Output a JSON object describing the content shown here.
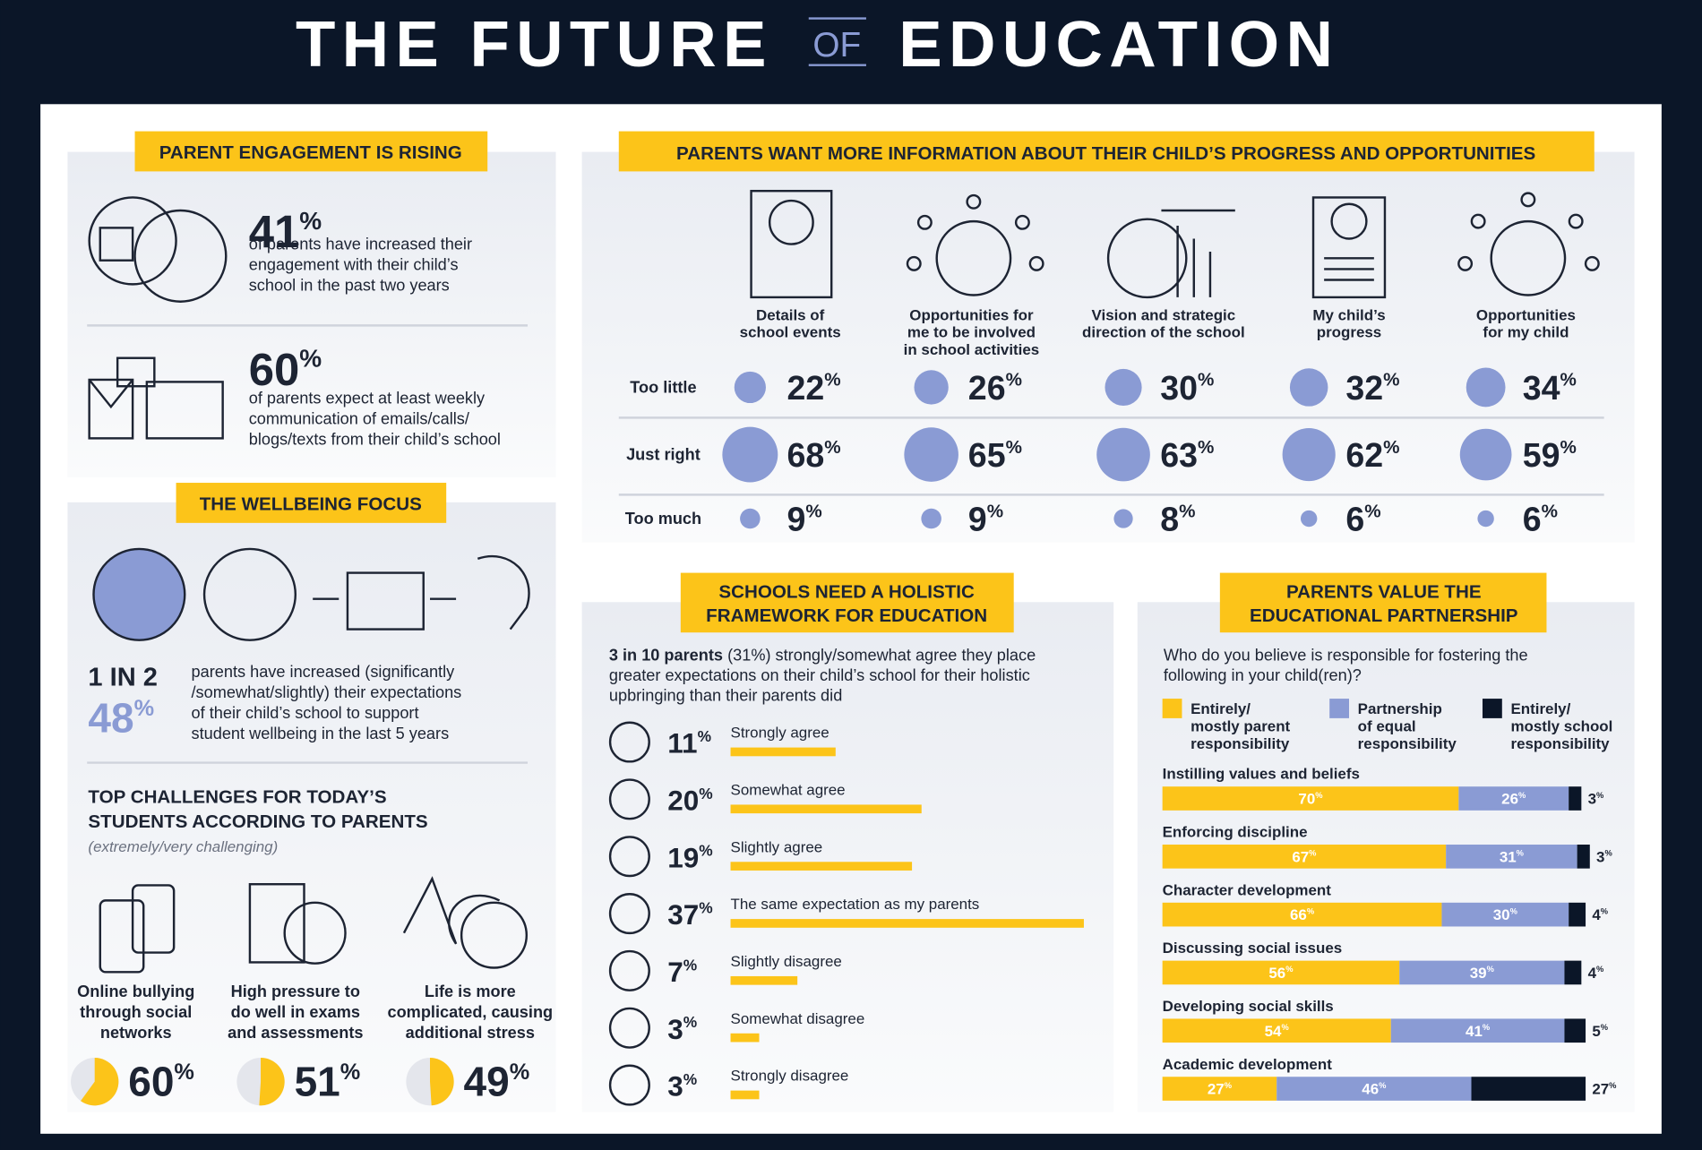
{
  "title": {
    "part1": "THE FUTURE",
    "part2": "OF",
    "part3": "EDUCATION"
  },
  "unit": "%",
  "engagement": {
    "heading": "PARENT ENGAGEMENT IS RISING",
    "stats": [
      {
        "value": 41,
        "lines": [
          "of parents have increased their",
          "engagement with their child’s",
          "school in the past two years"
        ]
      },
      {
        "value": 60,
        "lines": [
          "of parents expect at least weekly",
          "communication of emails/calls/",
          "blogs/texts from their child’s school"
        ]
      }
    ]
  },
  "wellbeing": {
    "heading": "THE WELLBEING FOCUS",
    "ratio": "1 IN 2",
    "value": 48,
    "lines": [
      "parents have increased (significantly",
      "/somewhat/slightly) their expectations",
      "of their child’s school to support",
      "student wellbeing in the last 5 years"
    ]
  },
  "challenges": {
    "heading_lines": [
      "TOP CHALLENGES FOR TODAY’S",
      "STUDENTS ACCORDING TO PARENTS"
    ],
    "note": "(extremely/very challenging)",
    "items": [
      {
        "lines": [
          "Online bullying",
          "through social",
          "networks"
        ],
        "value": 60
      },
      {
        "lines": [
          "High pressure to",
          "do well in exams",
          "and assessments"
        ],
        "value": 51
      },
      {
        "lines": [
          "Life is more",
          "complicated, causing",
          "additional stress"
        ],
        "value": 49
      }
    ]
  },
  "information": {
    "heading": "PARENTS WANT MORE INFORMATION ABOUT  THEIR CHILD’S PROGRESS AND OPPORTUNITIES",
    "color": "#8a9bd4",
    "rows": [
      "Too little",
      "Just right",
      "Too much"
    ],
    "columns": [
      {
        "lines": [
          "Details of",
          "school events"
        ],
        "values": [
          22,
          68,
          9
        ]
      },
      {
        "lines": [
          "Opportunities for",
          "me to be involved",
          "in school activities"
        ],
        "values": [
          26,
          65,
          9
        ]
      },
      {
        "lines": [
          "Vision and strategic",
          "direction of the school"
        ],
        "values": [
          30,
          63,
          8
        ]
      },
      {
        "lines": [
          "My child’s",
          "progress"
        ],
        "values": [
          32,
          62,
          6
        ]
      },
      {
        "lines": [
          "Opportunities",
          "for my child"
        ],
        "values": [
          34,
          59,
          6
        ]
      }
    ]
  },
  "holistic": {
    "heading_lines": [
      "SCHOOLS NEED A HOLISTIC",
      "FRAMEWORK FOR EDUCATION"
    ],
    "intro_bold": "3 in 10 parents",
    "intro_lines": [
      " (31%) strongly/somewhat agree they place",
      "greater expectations on their child’s school for their holistic",
      "upbringing than their parents did"
    ],
    "color": "#fcc419",
    "items": [
      {
        "value": 11,
        "label": "Strongly agree"
      },
      {
        "value": 20,
        "label": "Somewhat agree"
      },
      {
        "value": 19,
        "label": "Slightly agree"
      },
      {
        "value": 37,
        "label": "The same expectation as my parents"
      },
      {
        "value": 7,
        "label": "Slightly disagree"
      },
      {
        "value": 3,
        "label": "Somewhat disagree"
      },
      {
        "value": 3,
        "label": "Strongly disagree"
      }
    ]
  },
  "partnership": {
    "heading_lines": [
      "PARENTS VALUE THE",
      "EDUCATIONAL PARTNERSHIP"
    ],
    "question_lines": [
      "Who do you believe is responsible for fostering the",
      "following in your child(ren)?"
    ],
    "legend": [
      {
        "lines": [
          "Entirely/",
          "mostly parent",
          "responsibility"
        ],
        "color": "#fcc419"
      },
      {
        "lines": [
          "Partnership",
          "of equal",
          "responsibility"
        ],
        "color": "#8a9bd4"
      },
      {
        "lines": [
          "Entirely/",
          "mostly school",
          "responsibility"
        ],
        "color": "#0b1628"
      }
    ],
    "rows": [
      {
        "label": "Instilling values and beliefs",
        "values": [
          70,
          26,
          3
        ]
      },
      {
        "label": "Enforcing discipline",
        "values": [
          67,
          31,
          3
        ]
      },
      {
        "label": "Character development",
        "values": [
          66,
          30,
          4
        ]
      },
      {
        "label": "Discussing social issues",
        "values": [
          56,
          39,
          4
        ]
      },
      {
        "label": "Developing social skills",
        "values": [
          54,
          41,
          5
        ]
      },
      {
        "label": "Academic development",
        "values": [
          27,
          46,
          27
        ]
      }
    ]
  }
}
